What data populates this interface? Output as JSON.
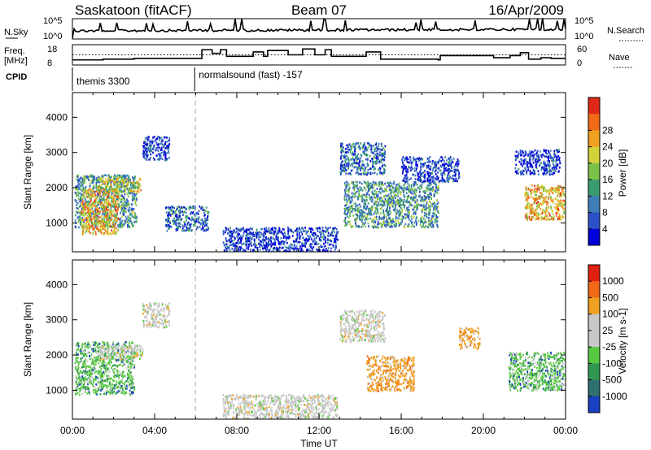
{
  "header": {
    "station": "Saskatoon (fitACF)",
    "beam": "Beam 07",
    "date": "16/Apr/2009"
  },
  "strip_labels": {
    "nsky": "N.Sky",
    "nsky_ticks": [
      "10^5",
      "10^0"
    ],
    "nsearch": "N.Search",
    "nsearch_ticks": [
      "10^5",
      "10^0"
    ],
    "freq": "Freq.",
    "freq_unit": "[MHz]",
    "freq_ticks": [
      "18",
      "8"
    ],
    "nave": "Nave",
    "nave_ticks": [
      "60",
      "0"
    ],
    "cpid": "CPID"
  },
  "cpid_segments": [
    {
      "start_hour": 0.0,
      "end_hour": 5.95,
      "label": "themis 3300"
    },
    {
      "start_hour": 5.95,
      "end_hour": 24.0,
      "label": "normalsound (fast) -157"
    }
  ],
  "freq_trace_mhz": [
    [
      0.0,
      9.5
    ],
    [
      1.5,
      10.0
    ],
    [
      3.0,
      10.5
    ],
    [
      6.0,
      10.5
    ],
    [
      6.3,
      16.5
    ],
    [
      6.8,
      14.0
    ],
    [
      7.2,
      16.5
    ],
    [
      7.5,
      12.0
    ],
    [
      8.8,
      15.0
    ],
    [
      9.3,
      12.0
    ],
    [
      9.5,
      16.0
    ],
    [
      10.5,
      13.0
    ],
    [
      11.2,
      17.0
    ],
    [
      11.8,
      13.0
    ],
    [
      12.3,
      16.5
    ],
    [
      12.6,
      12.0
    ],
    [
      14.0,
      12.0
    ],
    [
      14.3,
      15.0
    ],
    [
      15.0,
      10.0
    ],
    [
      16.5,
      10.0
    ],
    [
      17.8,
      9.5
    ],
    [
      17.9,
      12.5
    ],
    [
      19.5,
      12.5
    ],
    [
      20.5,
      11.0
    ],
    [
      21.3,
      12.5
    ],
    [
      21.8,
      14.5
    ],
    [
      22.2,
      10.0
    ],
    [
      22.8,
      11.0
    ],
    [
      23.3,
      10.5
    ],
    [
      24.0,
      10.5
    ]
  ],
  "nave_reference": 0.5,
  "chart_data": [
    {
      "type": "heatmap",
      "name": "power",
      "xlabel": "",
      "ylabel": "Slant Range [km]",
      "xlim": [
        0,
        24
      ],
      "ylim": [
        180,
        4700
      ],
      "yticks": [
        "1000",
        "2000",
        "3000",
        "4000"
      ],
      "colorbar_label": "Power [dB]",
      "colorbar_ticks": [
        "4",
        "8",
        "12",
        "16",
        "20",
        "24",
        "28"
      ],
      "colorbar_colors": [
        "#0000d8",
        "#2c50c8",
        "#3f7fb8",
        "#3a9c6e",
        "#7cc24a",
        "#d2d23a",
        "#f0a020",
        "#f06a18",
        "#e02818"
      ],
      "echo_regions": [
        {
          "x0": 0.1,
          "x1": 3.1,
          "r0": 900,
          "r1": 2400,
          "level": 3
        },
        {
          "x0": 0.4,
          "x1": 2.2,
          "r0": 700,
          "r1": 2000,
          "level": 6
        },
        {
          "x0": 1.2,
          "x1": 3.3,
          "r0": 1900,
          "r1": 2300,
          "level": 5
        },
        {
          "x0": 3.4,
          "x1": 4.7,
          "r0": 2800,
          "r1": 3500,
          "level": 1
        },
        {
          "x0": 4.5,
          "x1": 6.6,
          "r0": 800,
          "r1": 1500,
          "level": 2
        },
        {
          "x0": 7.3,
          "x1": 12.9,
          "r0": 200,
          "r1": 900,
          "level": 1
        },
        {
          "x0": 13.0,
          "x1": 15.2,
          "r0": 2400,
          "r1": 3300,
          "level": 2
        },
        {
          "x0": 13.2,
          "x1": 17.8,
          "r0": 900,
          "r1": 2200,
          "level": 3
        },
        {
          "x0": 16.0,
          "x1": 18.8,
          "r0": 2200,
          "r1": 2900,
          "level": 1
        },
        {
          "x0": 22.0,
          "x1": 24.0,
          "r0": 1100,
          "r1": 2100,
          "level": 6
        },
        {
          "x0": 21.5,
          "x1": 23.7,
          "r0": 2400,
          "r1": 3100,
          "level": 1
        }
      ]
    },
    {
      "type": "heatmap",
      "name": "velocity",
      "xlabel": "Time UT",
      "ylabel": "Slant Range [km]",
      "xlim": [
        0,
        24
      ],
      "ylim": [
        180,
        4700
      ],
      "xticks": [
        "00:00",
        "04:00",
        "08:00",
        "12:00",
        "16:00",
        "20:00",
        "00:00"
      ],
      "yticks": [
        "1000",
        "2000",
        "3000",
        "4000"
      ],
      "colorbar_label": "Velocity [m s-1]",
      "colorbar_ticks": [
        "1000",
        "500",
        "100",
        "25",
        "-25",
        "-100",
        "-500",
        "-1000"
      ],
      "colorbar_colors": [
        "#1840c0",
        "#2f7070",
        "#2f9850",
        "#58c840",
        "#c8c8c8",
        "#c8c8c8",
        "#f0a020",
        "#f06818",
        "#e02010"
      ],
      "echo_regions": [
        {
          "x0": 0.1,
          "x1": 3.0,
          "r0": 900,
          "r1": 2400,
          "tone": "green"
        },
        {
          "x0": 1.3,
          "x1": 3.4,
          "r0": 1900,
          "r1": 2300,
          "tone": "grey"
        },
        {
          "x0": 3.4,
          "x1": 4.7,
          "r0": 2800,
          "r1": 3500,
          "tone": "grey"
        },
        {
          "x0": 7.3,
          "x1": 12.9,
          "r0": 200,
          "r1": 900,
          "tone": "grey"
        },
        {
          "x0": 13.0,
          "x1": 15.2,
          "r0": 2400,
          "r1": 3300,
          "tone": "grey"
        },
        {
          "x0": 14.3,
          "x1": 16.6,
          "r0": 1000,
          "r1": 2000,
          "tone": "orange"
        },
        {
          "x0": 18.8,
          "x1": 19.8,
          "r0": 2200,
          "r1": 2800,
          "tone": "orange"
        },
        {
          "x0": 21.2,
          "x1": 24.0,
          "r0": 1000,
          "r1": 2100,
          "tone": "green"
        }
      ]
    }
  ]
}
